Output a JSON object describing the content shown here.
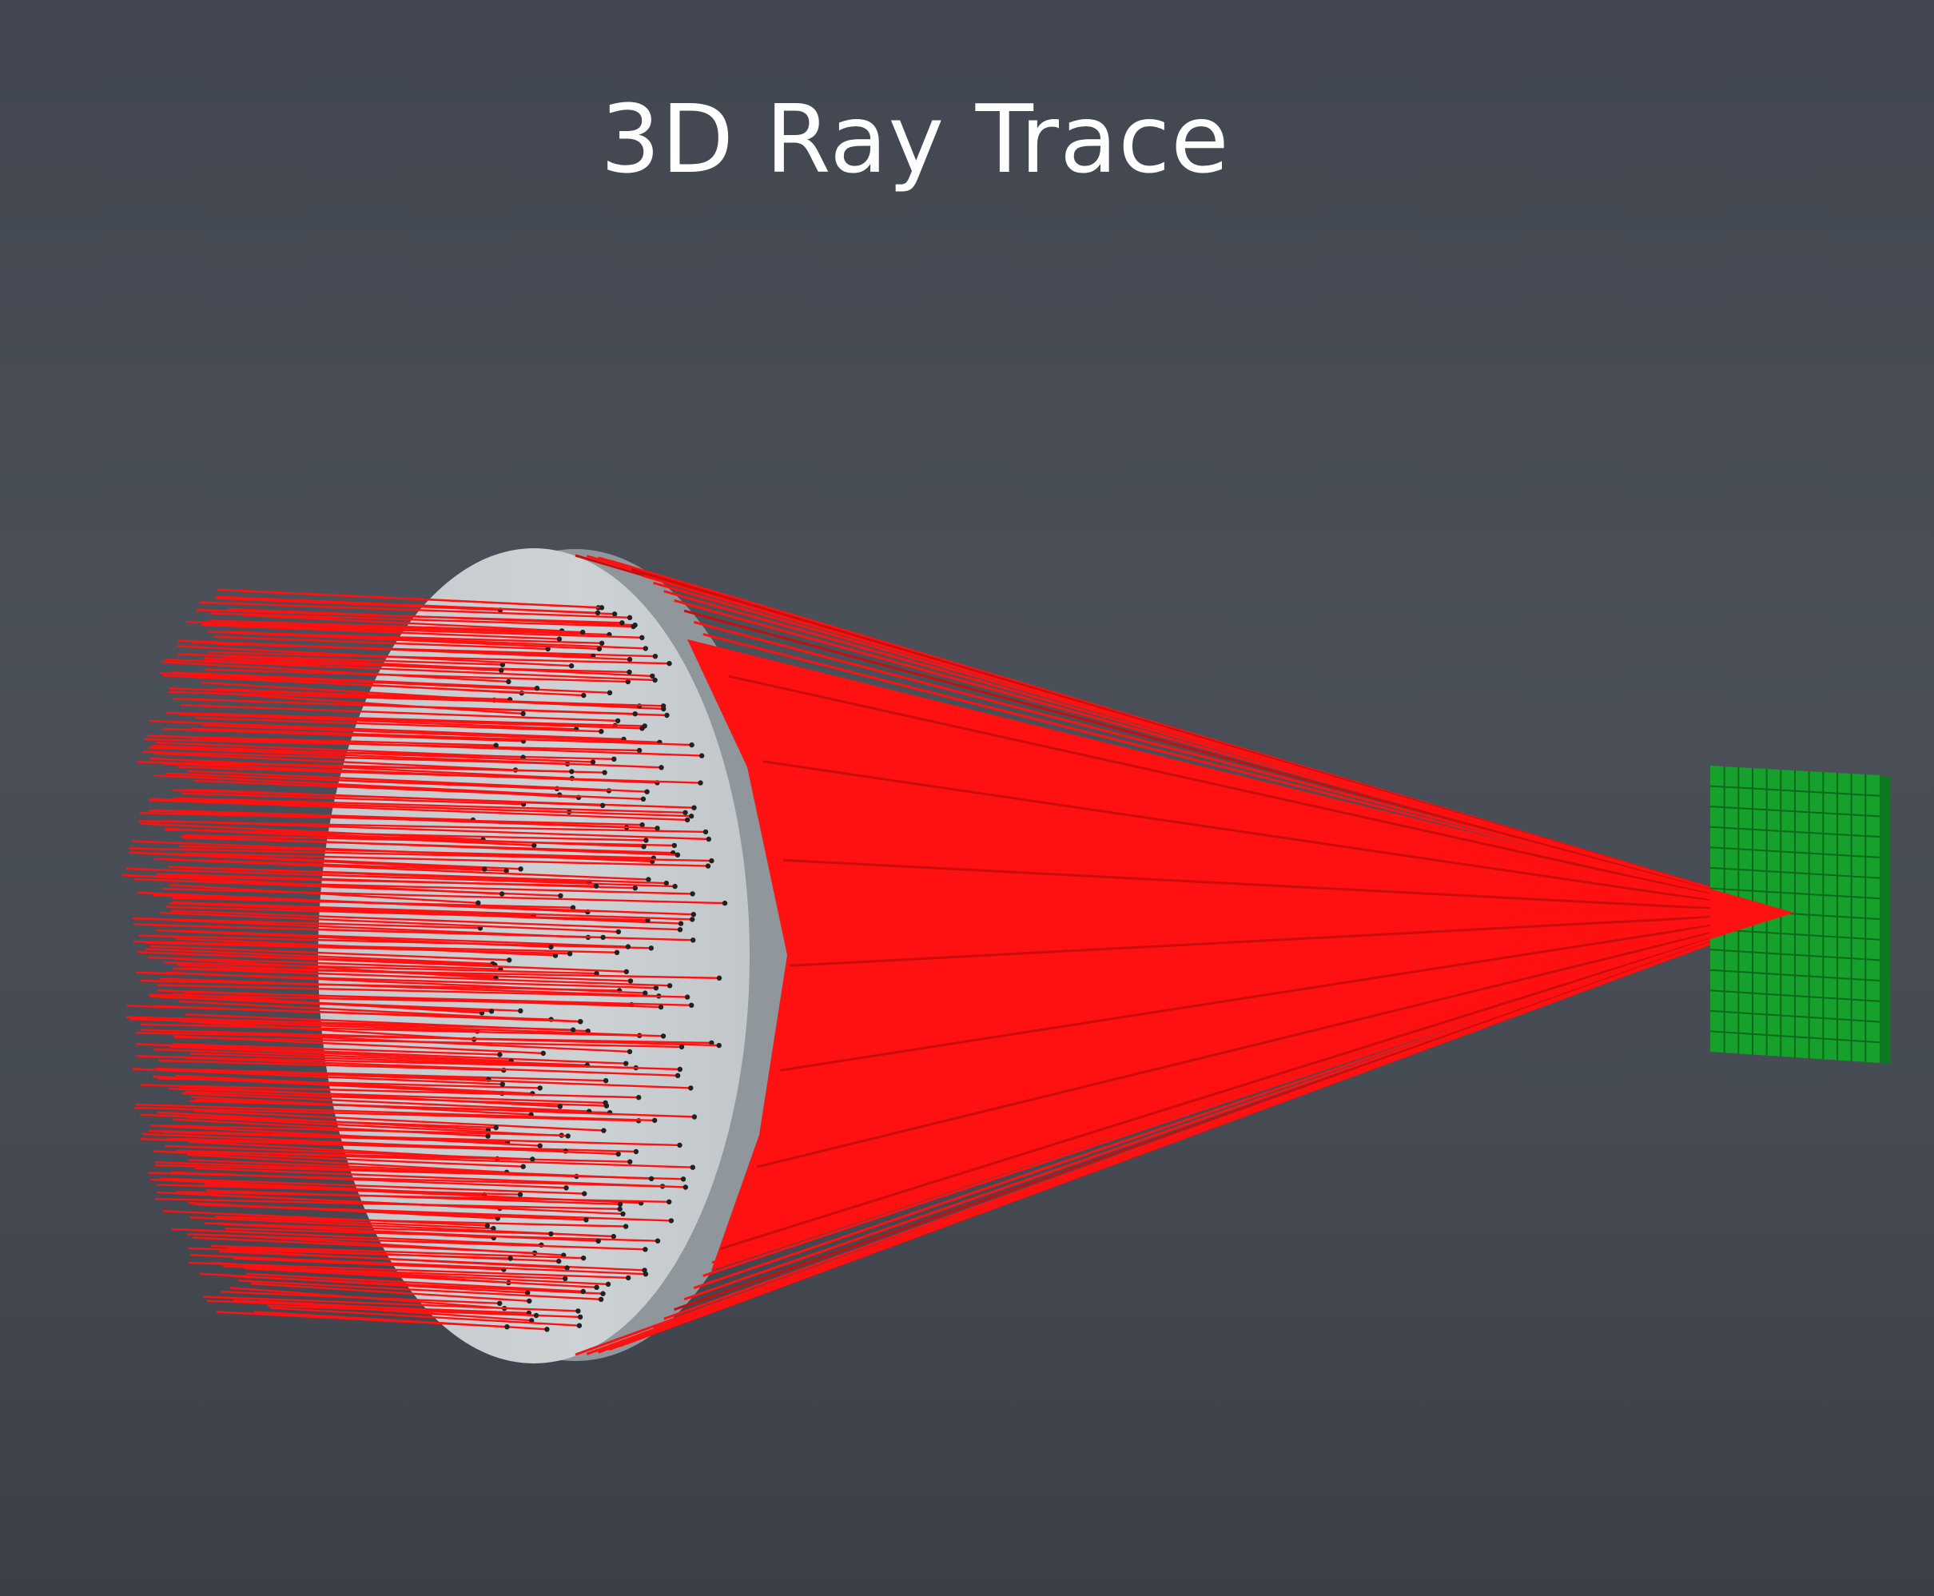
{
  "title": "3D Ray Trace",
  "colors": {
    "background": "#464b53",
    "rays": "#ff1111",
    "lens_face": "#c9ced1",
    "lens_edge": "#8f979c",
    "detector": "#15a12b",
    "detector_grid": "#0c6b1a",
    "ray_points": "#222222"
  },
  "scene": {
    "lens": "lens",
    "detector": "detector"
  }
}
